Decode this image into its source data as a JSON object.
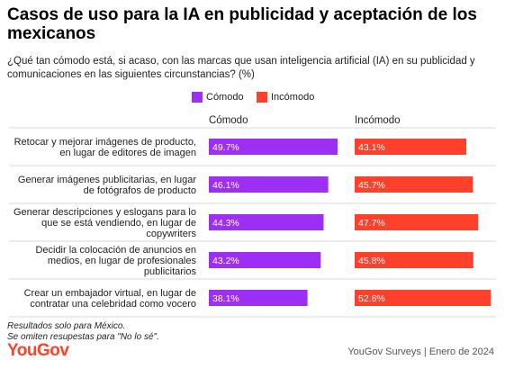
{
  "title": "Casos de uso para la IA en publicidad y aceptación de los mexicanos",
  "subtitle": "¿Qué tan cómodo está, si acaso, con las marcas que usan inteligencia artificial (IA) en su publicidad y comunicaciones en las siguientes circunstancias? (%)",
  "footnotes": [
    "Resultados solo para México.",
    "Se omiten resupestas para \"No lo sé\"."
  ],
  "logo": "YouGov",
  "source": "YouGov Surveys | Enero de 2024",
  "colors": {
    "comodo": "#9d2ff5",
    "incomodo": "#ff412c"
  },
  "chart_data": {
    "type": "bar",
    "orientation": "horizontal",
    "layout": "side-by-side panels",
    "categories": [
      [
        "Retocar y mejorar imágenes de producto,",
        "en lugar de editores de imagen"
      ],
      [
        "Generar imágenes publicitarias, en lugar",
        "de fotógrafos de producto"
      ],
      [
        "Generar descripciones y eslogans para lo",
        "que se está vendiendo, en lugar de",
        "copywriters"
      ],
      [
        "Decidir la colocación de anuncios en",
        "medios, en lugar de profesionales",
        "publicitarios"
      ],
      [
        "Crear un embajador virtual, en lugar de",
        "contratar una celebridad como vocero"
      ]
    ],
    "series": [
      {
        "name": "Cómodo",
        "values": [
          49.7,
          46.1,
          44.3,
          43.2,
          38.1
        ],
        "labels": [
          "49.7%",
          "46.1%",
          "44.3%",
          "43.2%",
          "38.1%"
        ]
      },
      {
        "name": "Incómodo",
        "values": [
          43.1,
          45.7,
          47.7,
          45.8,
          52.6
        ],
        "labels": [
          "43.1%",
          "45.7%",
          "47.7%",
          "45.8%",
          "52.6%"
        ]
      }
    ],
    "legend": {
      "position": "top-right",
      "entries": [
        "Cómodo",
        "Incómodo"
      ]
    },
    "grid": false
  }
}
